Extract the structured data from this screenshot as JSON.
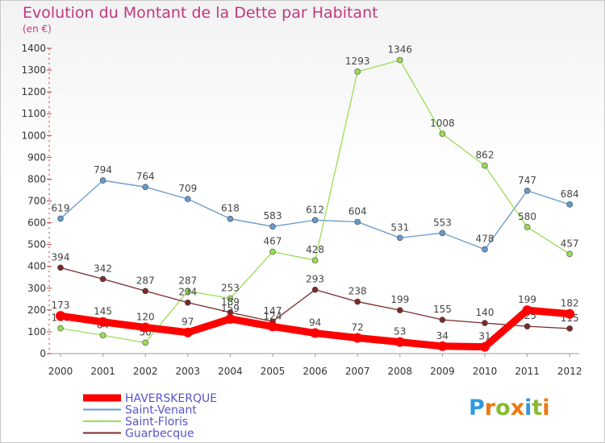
{
  "chart_data": {
    "type": "line",
    "title": "Evolution du Montant de la Dette par Habitant",
    "subtitle": "(en €)",
    "categories": [
      "2000",
      "2001",
      "2002",
      "2003",
      "2004",
      "2005",
      "2006",
      "2007",
      "2008",
      "2009",
      "2010",
      "2011",
      "2012"
    ],
    "ylim": [
      0,
      1400
    ],
    "yticks": [
      0,
      100,
      200,
      300,
      400,
      500,
      600,
      700,
      800,
      900,
      1000,
      1100,
      1200,
      1300,
      1400
    ],
    "grid": false,
    "legend_position": "bottom-left",
    "series": [
      {
        "name": "HAVERSKERQUE",
        "color": "#ff0000",
        "values": [
          173,
          145,
          120,
          97,
          159,
          124,
          94,
          72,
          53,
          34,
          31,
          199,
          182
        ]
      },
      {
        "name": "Saint-Venant",
        "color": "#6699cc",
        "values": [
          619,
          794,
          764,
          709,
          618,
          583,
          612,
          604,
          531,
          553,
          478,
          747,
          684
        ]
      },
      {
        "name": "Saint-Floris",
        "color": "#99dd55",
        "values": [
          116,
          84,
          50,
          287,
          253,
          467,
          428,
          1293,
          1346,
          1008,
          862,
          580,
          457
        ]
      },
      {
        "name": "Guarbecque",
        "color": "#7a2a2a",
        "values": [
          394,
          342,
          287,
          234,
          189,
          147,
          293,
          238,
          199,
          155,
          140,
          125,
          115
        ]
      }
    ]
  },
  "logo": {
    "letters": [
      "P",
      "r",
      "o",
      "x",
      "i",
      "t",
      "i"
    ],
    "colors": [
      "#3399dd",
      "#ee7711",
      "#88bb33",
      "#ee7711",
      "#3399dd",
      "#88bb33",
      "#ee7711"
    ]
  }
}
